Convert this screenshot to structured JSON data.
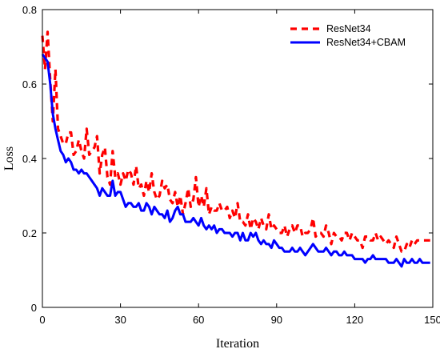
{
  "chart_data": {
    "type": "line",
    "title": "",
    "xlabel": "Iteration",
    "ylabel": "Loss",
    "xlim": [
      0,
      150
    ],
    "ylim": [
      0,
      0.8
    ],
    "xticks": [
      0,
      30,
      60,
      90,
      120,
      150
    ],
    "yticks": [
      0,
      0.2,
      0.4,
      0.6,
      0.8
    ],
    "xtick_labels": [
      "0",
      "30",
      "60",
      "90",
      "120",
      "150"
    ],
    "ytick_labels": [
      "0",
      "0.2",
      "0.4",
      "0.6",
      "0.8"
    ],
    "grid": false,
    "legend_position": "top-right",
    "series": [
      {
        "name": "ResNet34",
        "color": "#ff0000",
        "style": "dashed",
        "x": [
          0,
          1,
          2,
          3,
          4,
          5,
          6,
          7,
          8,
          9,
          10,
          11,
          12,
          13,
          14,
          15,
          16,
          17,
          18,
          19,
          20,
          21,
          22,
          23,
          24,
          25,
          26,
          27,
          28,
          29,
          30,
          31,
          32,
          33,
          34,
          35,
          36,
          37,
          38,
          39,
          40,
          41,
          42,
          43,
          44,
          45,
          46,
          47,
          48,
          49,
          50,
          51,
          52,
          53,
          54,
          55,
          56,
          57,
          58,
          59,
          60,
          61,
          62,
          63,
          64,
          65,
          66,
          67,
          68,
          69,
          70,
          71,
          72,
          73,
          74,
          75,
          76,
          77,
          78,
          79,
          80,
          81,
          82,
          83,
          84,
          85,
          86,
          87,
          88,
          89,
          90,
          91,
          92,
          93,
          94,
          95,
          96,
          97,
          98,
          99,
          100,
          101,
          102,
          103,
          104,
          105,
          106,
          107,
          108,
          109,
          110,
          111,
          112,
          113,
          114,
          115,
          116,
          117,
          118,
          119,
          120,
          121,
          122,
          123,
          124,
          125,
          126,
          127,
          128,
          129,
          130,
          131,
          132,
          133,
          134,
          135,
          136,
          137,
          138,
          139,
          140,
          141,
          142,
          143,
          144,
          145,
          146,
          147,
          148,
          149
        ],
        "y": [
          0.73,
          0.64,
          0.74,
          0.61,
          0.5,
          0.64,
          0.48,
          0.46,
          0.44,
          0.44,
          0.47,
          0.47,
          0.41,
          0.42,
          0.45,
          0.42,
          0.4,
          0.48,
          0.41,
          0.42,
          0.43,
          0.46,
          0.36,
          0.41,
          0.43,
          0.35,
          0.33,
          0.42,
          0.35,
          0.36,
          0.33,
          0.36,
          0.34,
          0.37,
          0.36,
          0.33,
          0.38,
          0.32,
          0.33,
          0.3,
          0.34,
          0.31,
          0.36,
          0.31,
          0.29,
          0.3,
          0.34,
          0.32,
          0.33,
          0.29,
          0.28,
          0.31,
          0.27,
          0.3,
          0.25,
          0.28,
          0.32,
          0.27,
          0.29,
          0.35,
          0.27,
          0.3,
          0.27,
          0.32,
          0.25,
          0.27,
          0.26,
          0.26,
          0.28,
          0.26,
          0.26,
          0.27,
          0.24,
          0.26,
          0.24,
          0.28,
          0.23,
          0.23,
          0.22,
          0.25,
          0.21,
          0.24,
          0.23,
          0.21,
          0.24,
          0.22,
          0.21,
          0.25,
          0.21,
          0.22,
          0.21,
          0.2,
          0.2,
          0.22,
          0.19,
          0.21,
          0.22,
          0.2,
          0.22,
          0.22,
          0.19,
          0.2,
          0.2,
          0.21,
          0.24,
          0.19,
          0.2,
          0.2,
          0.19,
          0.22,
          0.2,
          0.17,
          0.2,
          0.19,
          0.19,
          0.18,
          0.2,
          0.2,
          0.18,
          0.2,
          0.19,
          0.18,
          0.18,
          0.16,
          0.19,
          0.19,
          0.18,
          0.18,
          0.2,
          0.18,
          0.19,
          0.18,
          0.17,
          0.18,
          0.17,
          0.16,
          0.19,
          0.17,
          0.15,
          0.15,
          0.17,
          0.16,
          0.18,
          0.17,
          0.18,
          0.18,
          0.18,
          0.18,
          0.18,
          0.18
        ]
      },
      {
        "name": "ResNet34+CBAM",
        "color": "#0000ff",
        "style": "solid",
        "x": [
          0,
          1,
          2,
          3,
          4,
          5,
          6,
          7,
          8,
          9,
          10,
          11,
          12,
          13,
          14,
          15,
          16,
          17,
          18,
          19,
          20,
          21,
          22,
          23,
          24,
          25,
          26,
          27,
          28,
          29,
          30,
          31,
          32,
          33,
          34,
          35,
          36,
          37,
          38,
          39,
          40,
          41,
          42,
          43,
          44,
          45,
          46,
          47,
          48,
          49,
          50,
          51,
          52,
          53,
          54,
          55,
          56,
          57,
          58,
          59,
          60,
          61,
          62,
          63,
          64,
          65,
          66,
          67,
          68,
          69,
          70,
          71,
          72,
          73,
          74,
          75,
          76,
          77,
          78,
          79,
          80,
          81,
          82,
          83,
          84,
          85,
          86,
          87,
          88,
          89,
          90,
          91,
          92,
          93,
          94,
          95,
          96,
          97,
          98,
          99,
          100,
          101,
          102,
          103,
          104,
          105,
          106,
          107,
          108,
          109,
          110,
          111,
          112,
          113,
          114,
          115,
          116,
          117,
          118,
          119,
          120,
          121,
          122,
          123,
          124,
          125,
          126,
          127,
          128,
          129,
          130,
          131,
          132,
          133,
          134,
          135,
          136,
          137,
          138,
          139,
          140,
          141,
          142,
          143,
          144,
          145,
          146,
          147,
          148,
          149
        ],
        "y": [
          0.68,
          0.67,
          0.66,
          0.6,
          0.52,
          0.48,
          0.45,
          0.42,
          0.41,
          0.39,
          0.4,
          0.39,
          0.37,
          0.37,
          0.36,
          0.37,
          0.36,
          0.36,
          0.35,
          0.34,
          0.33,
          0.32,
          0.3,
          0.32,
          0.31,
          0.3,
          0.3,
          0.34,
          0.3,
          0.31,
          0.31,
          0.29,
          0.27,
          0.28,
          0.28,
          0.27,
          0.27,
          0.28,
          0.26,
          0.26,
          0.28,
          0.27,
          0.25,
          0.27,
          0.26,
          0.25,
          0.25,
          0.24,
          0.26,
          0.23,
          0.24,
          0.26,
          0.27,
          0.25,
          0.25,
          0.23,
          0.23,
          0.23,
          0.24,
          0.23,
          0.22,
          0.24,
          0.22,
          0.21,
          0.22,
          0.21,
          0.22,
          0.2,
          0.21,
          0.21,
          0.2,
          0.2,
          0.2,
          0.19,
          0.2,
          0.2,
          0.18,
          0.2,
          0.18,
          0.18,
          0.2,
          0.19,
          0.2,
          0.18,
          0.17,
          0.18,
          0.17,
          0.17,
          0.16,
          0.18,
          0.17,
          0.16,
          0.16,
          0.15,
          0.15,
          0.15,
          0.16,
          0.15,
          0.15,
          0.16,
          0.15,
          0.14,
          0.15,
          0.16,
          0.17,
          0.16,
          0.15,
          0.15,
          0.15,
          0.16,
          0.15,
          0.14,
          0.15,
          0.15,
          0.14,
          0.14,
          0.15,
          0.14,
          0.14,
          0.14,
          0.13,
          0.13,
          0.13,
          0.13,
          0.12,
          0.13,
          0.13,
          0.14,
          0.13,
          0.13,
          0.13,
          0.13,
          0.13,
          0.12,
          0.12,
          0.12,
          0.13,
          0.12,
          0.11,
          0.13,
          0.12,
          0.12,
          0.13,
          0.12,
          0.12,
          0.13,
          0.12,
          0.12,
          0.12,
          0.12
        ]
      }
    ]
  }
}
